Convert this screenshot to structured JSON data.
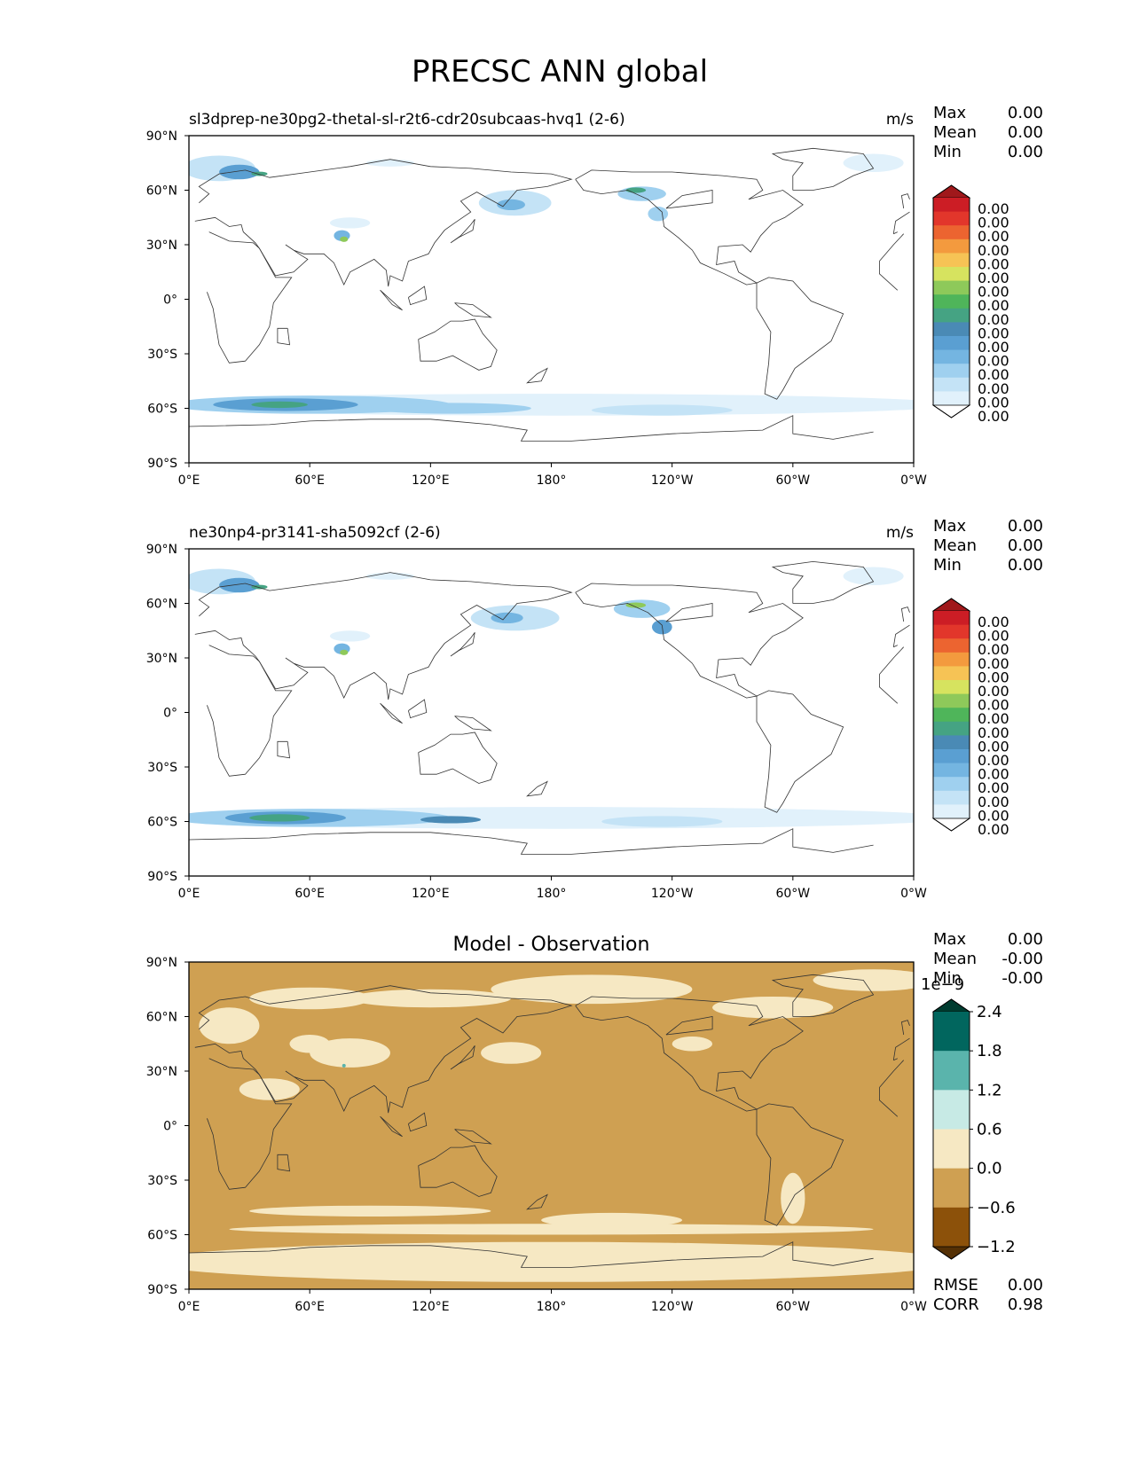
{
  "figure": {
    "title": "PRECSC ANN global"
  },
  "panels": [
    {
      "left_title": "sl3dprep-ne30pg2-thetal-sl-r2t6-cdr20subcaas-hvq1 (2-6)",
      "center_title": "",
      "units": "m/s",
      "stats": [
        [
          "Max",
          "0.00"
        ],
        [
          "Mean",
          "0.00"
        ],
        [
          "Min",
          "0.00"
        ]
      ],
      "bottom_stats": [],
      "colorbar": {
        "type": "test",
        "labels": [
          "0.00",
          "0.00",
          "0.00",
          "0.00",
          "0.00",
          "0.00",
          "0.00",
          "0.00",
          "0.00",
          "0.00",
          "0.00",
          "0.00",
          "0.00",
          "0.00",
          "0.00",
          "0.00"
        ],
        "colors": [
          "#ffffff",
          "#e1f1fb",
          "#c4e3f6",
          "#9fd0ef",
          "#74b5e1",
          "#5a9fd2",
          "#4a8ab5",
          "#45a383",
          "#4fb55a",
          "#8ec95a",
          "#d6e35f",
          "#f6c355",
          "#f39a3e",
          "#ec6430",
          "#e2362b",
          "#cc1d25",
          "#a0181b"
        ]
      },
      "chart_data": {
        "type": "heatmap",
        "title": "sl3dprep-ne30pg2-thetal-sl-r2t6-cdr20subcaas-hvq1 (2-6)",
        "variable": "PRECSC",
        "units": "m/s",
        "x_ticks": [
          "0°E",
          "60°E",
          "120°E",
          "180°",
          "120°W",
          "60°W",
          "0°W"
        ],
        "y_ticks": [
          "90°N",
          "60°N",
          "30°N",
          "0°",
          "30°S",
          "60°S",
          "90°S"
        ],
        "xlim": [
          0,
          360
        ],
        "ylim": [
          -90,
          90
        ],
        "field_features": [
          {
            "region": "Scandinavia/N. Europe",
            "lon": 25,
            "lat": 70,
            "level": 6
          },
          {
            "region": "Tibetan Plateau",
            "lon": 78,
            "lat": 33,
            "level": 9
          },
          {
            "region": "Kamchatka/NW Pacific",
            "lon": 160,
            "lat": 53,
            "level": 4
          },
          {
            "region": "Gulf of Alaska coast",
            "lon": 222,
            "lat": 58,
            "level": 8
          },
          {
            "region": "NE Pacific",
            "lon": 233,
            "lat": 48,
            "level": 4
          },
          {
            "region": "Southern Ocean belt",
            "lon": 60,
            "lat": -58,
            "level": 7
          }
        ]
      }
    },
    {
      "left_title": "ne30np4-pr3141-sha5092cf (2-6)",
      "center_title": "",
      "units": "m/s",
      "stats": [
        [
          "Max",
          "0.00"
        ],
        [
          "Mean",
          "0.00"
        ],
        [
          "Min",
          "0.00"
        ]
      ],
      "bottom_stats": [],
      "colorbar": {
        "type": "test",
        "labels": [
          "0.00",
          "0.00",
          "0.00",
          "0.00",
          "0.00",
          "0.00",
          "0.00",
          "0.00",
          "0.00",
          "0.00",
          "0.00",
          "0.00",
          "0.00",
          "0.00",
          "0.00",
          "0.00"
        ],
        "colors": [
          "#ffffff",
          "#e1f1fb",
          "#c4e3f6",
          "#9fd0ef",
          "#74b5e1",
          "#5a9fd2",
          "#4a8ab5",
          "#45a383",
          "#4fb55a",
          "#8ec95a",
          "#d6e35f",
          "#f6c355",
          "#f39a3e",
          "#ec6430",
          "#e2362b",
          "#cc1d25",
          "#a0181b"
        ]
      },
      "chart_data": {
        "type": "heatmap",
        "title": "ne30np4-pr3141-sha5092cf (2-6)",
        "variable": "PRECSC",
        "units": "m/s",
        "x_ticks": [
          "0°E",
          "60°E",
          "120°E",
          "180°",
          "120°W",
          "60°W",
          "0°W"
        ],
        "y_ticks": [
          "90°N",
          "60°N",
          "30°N",
          "0°",
          "30°S",
          "60°S",
          "90°S"
        ],
        "xlim": [
          0,
          360
        ],
        "ylim": [
          -90,
          90
        ],
        "field_features": [
          {
            "region": "Scandinavia/N. Europe",
            "lon": 25,
            "lat": 70,
            "level": 6
          },
          {
            "region": "Tibetan Plateau",
            "lon": 78,
            "lat": 33,
            "level": 9
          },
          {
            "region": "Kamchatka/NW Pacific",
            "lon": 160,
            "lat": 52,
            "level": 4
          },
          {
            "region": "Gulf of Alaska coast",
            "lon": 222,
            "lat": 58,
            "level": 9
          },
          {
            "region": "NE Pacific",
            "lon": 235,
            "lat": 47,
            "level": 5
          },
          {
            "region": "Southern Ocean belt",
            "lon": 60,
            "lat": -58,
            "level": 8
          }
        ]
      }
    },
    {
      "left_title": "",
      "center_title": "Model - Observation",
      "units": "",
      "stats": [
        [
          "Max",
          "0.00"
        ],
        [
          "Mean",
          "-0.00"
        ],
        [
          "Min",
          "-0.00"
        ]
      ],
      "bottom_stats": [
        [
          "RMSE",
          "0.00"
        ],
        [
          "CORR",
          "0.98"
        ]
      ],
      "colorbar": {
        "type": "diff",
        "multiplier": "1e−9",
        "labels": [
          "2.4",
          "1.8",
          "1.2",
          "0.6",
          "0.0",
          "−0.6",
          "−1.2"
        ],
        "colors": [
          "#01665e",
          "#5ab4ac",
          "#c7eae5",
          "#f6e8c3",
          "#cfa052",
          "#8c510a"
        ],
        "under_color": "#543005",
        "over_color": "#003c30"
      },
      "chart_data": {
        "type": "heatmap",
        "title": "Model - Observation",
        "variable": "PRECSC difference",
        "x_ticks": [
          "0°E",
          "60°E",
          "120°E",
          "180°",
          "120°W",
          "60°W",
          "0°W"
        ],
        "y_ticks": [
          "90°N",
          "60°N",
          "30°N",
          "0°",
          "30°S",
          "60°S",
          "90°S"
        ],
        "xlim": [
          0,
          360
        ],
        "ylim": [
          -90,
          90
        ],
        "dominant_bin": [
          -0.6,
          0.0
        ],
        "secondary_bin": [
          0.0,
          0.6
        ]
      }
    }
  ]
}
